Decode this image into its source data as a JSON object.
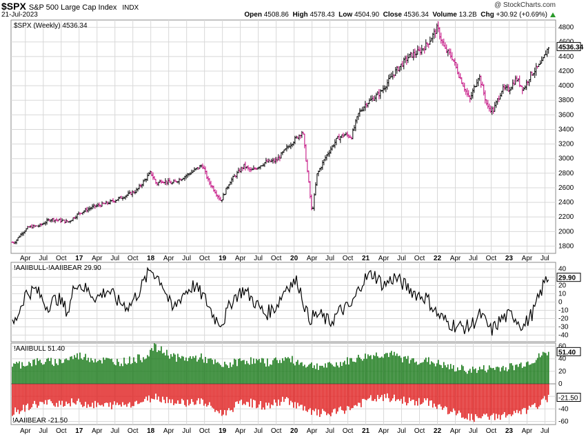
{
  "header": {
    "symbol": "$SPX",
    "name": "S&P 500 Large Cap Index",
    "exchange": "INDX",
    "date": "21-Jul-2023",
    "watermark": "@ StockCharts.com",
    "open_label": "Open",
    "open": "4508.86",
    "high_label": "High",
    "high": "4578.43",
    "low_label": "Low",
    "low": "4504.90",
    "close_label": "Close",
    "close": "4536.34",
    "volume_label": "Volume",
    "volume": "13.2B",
    "chg_label": "Chg",
    "chg": "+30.92 (+0.69%)"
  },
  "colors": {
    "price_up": "#000000",
    "price_down": "#c0007a",
    "bull": "#1a7a1a",
    "bear": "#e02020",
    "grid": "#d8d8d8",
    "line": "#000000"
  },
  "chart_data": [
    {
      "type": "line",
      "title": "$SPX (Weekly) 4536.34",
      "last_value": "4536.34",
      "ylim": [
        1700,
        4900
      ],
      "yticks": [
        1800,
        2000,
        2200,
        2400,
        2600,
        2800,
        3000,
        3200,
        3400,
        3600,
        3800,
        4000,
        4200,
        4400,
        4600,
        4800
      ],
      "xlim": [
        2016.05,
        2023.65
      ],
      "series": [
        {
          "x": [
            2016.1,
            2016.2,
            2016.3,
            2016.45,
            2016.6,
            2016.75,
            2016.85,
            2017.0,
            2017.2,
            2017.4,
            2017.6,
            2017.8,
            2018.0,
            2018.08,
            2018.15,
            2018.3,
            2018.5,
            2018.72,
            2018.8,
            2018.98,
            2019.1,
            2019.3,
            2019.4,
            2019.6,
            2019.75,
            2019.95,
            2020.05,
            2020.12,
            2020.2,
            2020.25,
            2020.32,
            2020.45,
            2020.6,
            2020.7,
            2020.8,
            2020.9,
            2021.0,
            2021.2,
            2021.4,
            2021.6,
            2021.75,
            2021.85,
            2022.0,
            2022.1,
            2022.2,
            2022.3,
            2022.45,
            2022.58,
            2022.7,
            2022.78,
            2022.9,
            2023.0,
            2023.1,
            2023.2,
            2023.3,
            2023.45,
            2023.55
          ],
          "y": [
            1850,
            1980,
            2060,
            2080,
            2170,
            2150,
            2130,
            2250,
            2340,
            2390,
            2470,
            2560,
            2810,
            2650,
            2700,
            2660,
            2770,
            2910,
            2700,
            2420,
            2680,
            2900,
            2830,
            2950,
            2970,
            3200,
            3300,
            3380,
            2700,
            2240,
            2780,
            3040,
            3270,
            3330,
            3300,
            3620,
            3750,
            3900,
            4180,
            4400,
            4470,
            4560,
            4790,
            4500,
            4400,
            4150,
            3800,
            4150,
            3700,
            3660,
            3950,
            3950,
            4100,
            3950,
            4150,
            4300,
            4536
          ]
        }
      ]
    },
    {
      "type": "line",
      "title": "!AAIIBULL-!AAIIBEAR 29.90",
      "last_value": "29.90",
      "ylim": [
        -48,
        48
      ],
      "yticks": [
        40,
        30,
        20,
        10,
        0,
        -10,
        -20,
        -30,
        -40
      ],
      "xlim": [
        2016.05,
        2023.65
      ],
      "series": [
        {
          "x": [
            2016.1,
            2016.25,
            2016.4,
            2016.55,
            2016.7,
            2016.85,
            2016.95,
            2017.1,
            2017.25,
            2017.4,
            2017.55,
            2017.7,
            2017.85,
            2018.0,
            2018.15,
            2018.3,
            2018.45,
            2018.6,
            2018.75,
            2018.9,
            2019.0,
            2019.15,
            2019.3,
            2019.45,
            2019.6,
            2019.75,
            2019.9,
            2020.05,
            2020.2,
            2020.35,
            2020.5,
            2020.65,
            2020.8,
            2020.95,
            2021.1,
            2021.25,
            2021.4,
            2021.55,
            2021.7,
            2021.85,
            2022.0,
            2022.15,
            2022.3,
            2022.45,
            2022.6,
            2022.75,
            2022.9,
            2023.05,
            2023.2,
            2023.35,
            2023.5,
            2023.55
          ],
          "y": [
            -25,
            10,
            15,
            -5,
            5,
            -12,
            25,
            15,
            5,
            15,
            0,
            -5,
            15,
            40,
            25,
            -10,
            10,
            20,
            5,
            -20,
            -25,
            5,
            15,
            0,
            -15,
            -5,
            20,
            25,
            -20,
            -15,
            -25,
            -10,
            -5,
            25,
            35,
            20,
            30,
            20,
            10,
            5,
            -15,
            -25,
            -30,
            -30,
            -15,
            -35,
            -20,
            -15,
            -30,
            -10,
            25,
            29.9
          ]
        }
      ]
    },
    {
      "type": "bar",
      "title": "!AAIIBULL 51.40",
      "last_value": "51.40",
      "ylim": [
        -65,
        65
      ],
      "yticks": [
        60,
        40,
        20,
        0,
        -20,
        -40,
        -60
      ],
      "xlim": [
        2016.05,
        2023.65
      ],
      "series": [
        {
          "name": "!AAIIBULL",
          "x": [
            2016.1,
            2016.4,
            2016.7,
            2017.0,
            2017.3,
            2017.6,
            2017.9,
            2018.05,
            2018.4,
            2018.7,
            2019.0,
            2019.3,
            2019.6,
            2019.9,
            2020.2,
            2020.5,
            2020.8,
            2021.05,
            2021.3,
            2021.6,
            2021.9,
            2022.2,
            2022.5,
            2022.8,
            2023.1,
            2023.35,
            2023.55
          ],
          "values": [
            30,
            35,
            35,
            45,
            38,
            35,
            42,
            58,
            40,
            42,
            28,
            38,
            34,
            40,
            30,
            28,
            38,
            45,
            48,
            38,
            36,
            25,
            22,
            25,
            28,
            38,
            51.4
          ]
        },
        {
          "name": "!AAIIBEAR -21.50",
          "x": [
            2016.1,
            2016.4,
            2016.7,
            2017.0,
            2017.3,
            2017.6,
            2017.9,
            2018.05,
            2018.4,
            2018.7,
            2019.0,
            2019.3,
            2019.6,
            2019.9,
            2020.2,
            2020.5,
            2020.8,
            2021.05,
            2021.3,
            2021.6,
            2021.9,
            2022.2,
            2022.5,
            2022.8,
            2023.1,
            2023.35,
            2023.55
          ],
          "values": [
            -45,
            -32,
            -30,
            -30,
            -35,
            -33,
            -28,
            -20,
            -30,
            -28,
            -48,
            -28,
            -36,
            -25,
            -45,
            -48,
            -38,
            -25,
            -22,
            -28,
            -30,
            -45,
            -55,
            -52,
            -48,
            -38,
            -21.5
          ]
        }
      ]
    }
  ],
  "x_tick_labels": [
    {
      "x": 2016.25,
      "label": "Apr",
      "bold": false
    },
    {
      "x": 2016.5,
      "label": "Jul",
      "bold": false
    },
    {
      "x": 2016.75,
      "label": "Oct",
      "bold": false
    },
    {
      "x": 2017.0,
      "label": "17",
      "bold": true
    },
    {
      "x": 2017.25,
      "label": "Apr",
      "bold": false
    },
    {
      "x": 2017.5,
      "label": "Jul",
      "bold": false
    },
    {
      "x": 2017.75,
      "label": "Oct",
      "bold": false
    },
    {
      "x": 2018.0,
      "label": "18",
      "bold": true
    },
    {
      "x": 2018.25,
      "label": "Apr",
      "bold": false
    },
    {
      "x": 2018.5,
      "label": "Jul",
      "bold": false
    },
    {
      "x": 2018.75,
      "label": "Oct",
      "bold": false
    },
    {
      "x": 2019.0,
      "label": "19",
      "bold": true
    },
    {
      "x": 2019.25,
      "label": "Apr",
      "bold": false
    },
    {
      "x": 2019.5,
      "label": "Jul",
      "bold": false
    },
    {
      "x": 2019.75,
      "label": "Oct",
      "bold": false
    },
    {
      "x": 2020.0,
      "label": "20",
      "bold": true
    },
    {
      "x": 2020.25,
      "label": "Apr",
      "bold": false
    },
    {
      "x": 2020.5,
      "label": "Jul",
      "bold": false
    },
    {
      "x": 2020.75,
      "label": "Oct",
      "bold": false
    },
    {
      "x": 2021.0,
      "label": "21",
      "bold": true
    },
    {
      "x": 2021.25,
      "label": "Apr",
      "bold": false
    },
    {
      "x": 2021.5,
      "label": "Jul",
      "bold": false
    },
    {
      "x": 2021.75,
      "label": "Oct",
      "bold": false
    },
    {
      "x": 2022.0,
      "label": "22",
      "bold": true
    },
    {
      "x": 2022.25,
      "label": "Apr",
      "bold": false
    },
    {
      "x": 2022.5,
      "label": "Jul",
      "bold": false
    },
    {
      "x": 2022.75,
      "label": "Oct",
      "bold": false
    },
    {
      "x": 2023.0,
      "label": "23",
      "bold": true
    },
    {
      "x": 2023.25,
      "label": "Apr",
      "bold": false
    },
    {
      "x": 2023.5,
      "label": "Jul",
      "bold": false
    }
  ]
}
